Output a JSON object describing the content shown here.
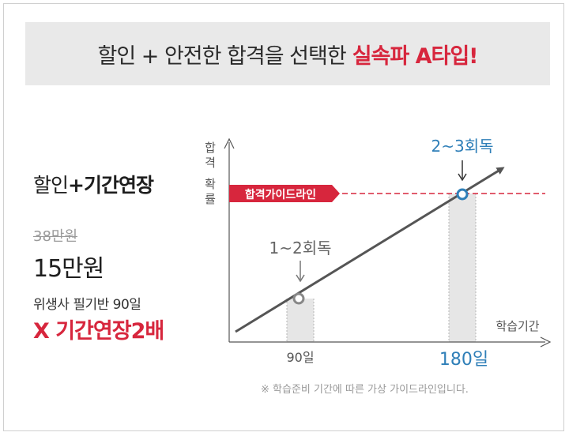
{
  "banner": {
    "title": "할인 + 안전한 합격을 선택한",
    "accent": "실속파 A타입!"
  },
  "left_panel": {
    "title_plain": "할인",
    "title_bold": "+기간연장",
    "old_price": "38만원",
    "new_price": "15만원",
    "subtitle": "위생사 필기반 90일",
    "accent": "X 기간연장2배"
  },
  "diagram": {
    "y_axis_label": "합격확률",
    "x_axis_label": "학습기간",
    "guideline_label": "합격가이드라인",
    "markers": [
      {
        "x_label": "90일",
        "annotation": "1~2회독",
        "color": "#666666",
        "emphasis": false
      },
      {
        "x_label": "180일",
        "annotation": "2~3회독",
        "color": "#2f7fb8",
        "emphasis": true
      }
    ],
    "colors": {
      "guideline": "#d7263d",
      "trend": "#555555",
      "accent_blue": "#2f7fb8"
    }
  },
  "footnote": "※ 학습준비 기간에 따른 가상 가이드라인입니다."
}
